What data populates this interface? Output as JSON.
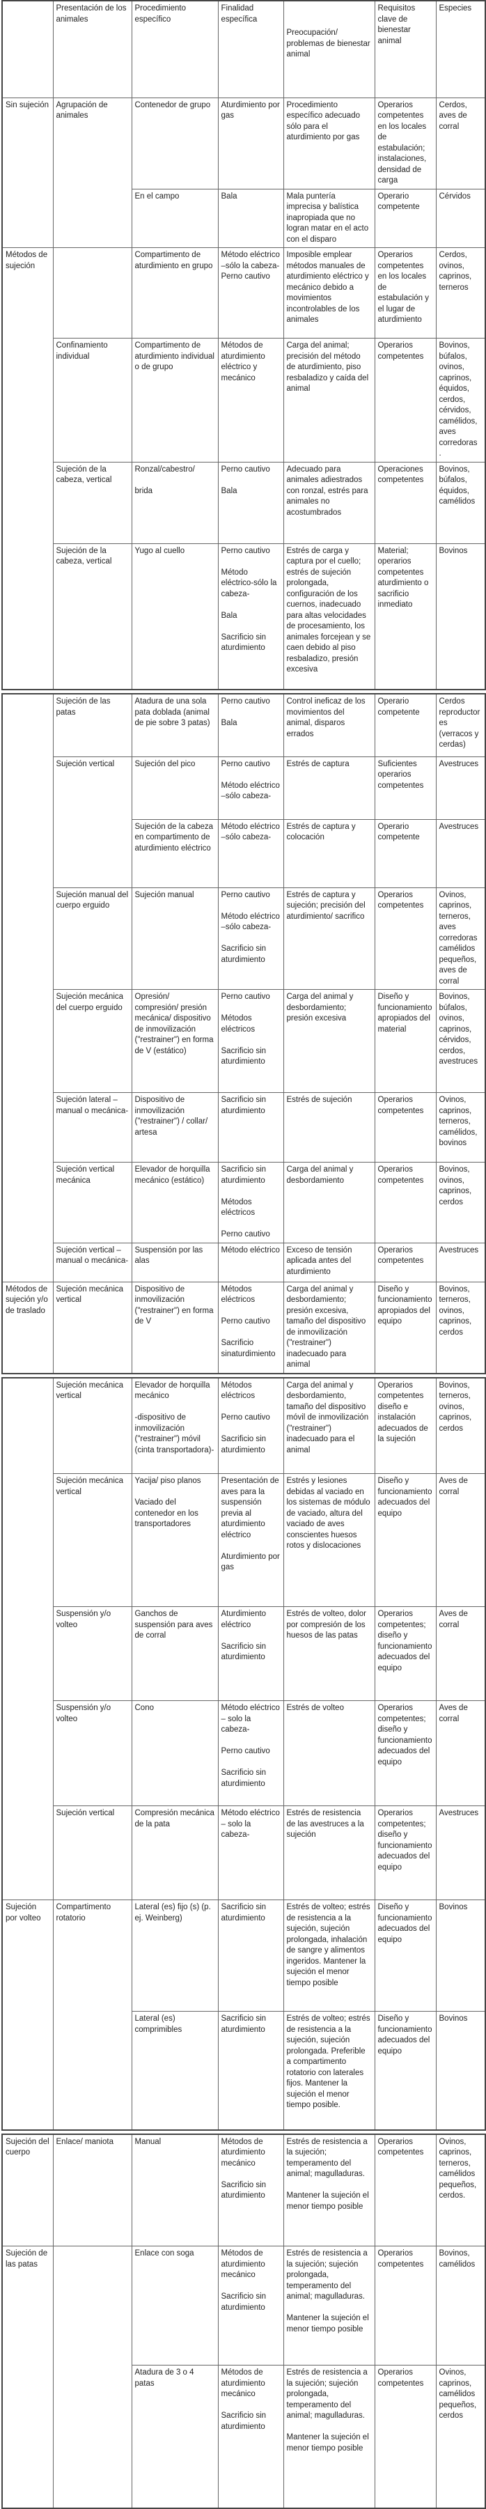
{
  "header": [
    "",
    "Presentación de los animales",
    "Procedimiento específico",
    "Finalidad específica",
    "Preocupación/ problemas de bienestar animal",
    "Requisitos clave de bienestar animal",
    "Especies"
  ],
  "pages": [
    [
      [
        {
          "t": "Sin sujeción",
          "span": 2
        },
        {
          "t": "Agrupación de animales",
          "span": 2
        },
        "Contenedor de grupo",
        "Aturdimiento por gas",
        "Procedimiento específico adecuado sólo para el aturdimiento por gas",
        "Operarios competentes en los locales de estabulación; instalaciones, densidad de carga",
        "Cerdos, aves de corral"
      ],
      [
        "En el campo",
        "Bala",
        "Mala puntería imprecisa y balística inapropiada que no logran matar en el acto con el disparo",
        "Operario competente",
        "Cérvidos"
      ],
      [
        {
          "t": "Métodos de sujeción",
          "span": 4
        },
        "",
        "Compartimento de aturdimiento en grupo",
        "Método eléctrico –sólo la cabeza-\nPerno cautivo",
        "Imposible emplear métodos manuales de aturdimiento eléctrico y mecánico debido a movimientos incontrolables de los animales",
        "Operarios competentes en los locales de estabulación y el lugar de aturdimiento",
        "Cerdos, ovinos, caprinos, terneros"
      ],
      [
        "Confinamiento individual",
        "Compartimento de aturdimiento individual o de grupo",
        "Métodos de aturdimiento eléctrico y mecánico",
        "Carga del animal; precisión del método de aturdimiento, piso resbaladizo y caída del animal",
        "Operarios competentes",
        "Bovinos, búfalos, ovinos, caprinos, équidos, cerdos, cérvidos, camélidos, aves corredoras\n."
      ],
      [
        "Sujeción de la cabeza, vertical",
        "Ronzal/cabestro/\n\nbrida",
        "Perno cautivo\n\nBala",
        "Adecuado para animales adiestrados con ronzal, estrés para animales no acostumbrados",
        "Operaciones competentes",
        "Bovinos, búfalos, équidos, camélidos"
      ],
      [
        "Sujeción de la cabeza, vertical",
        "Yugo al cuello",
        "Perno cautivo\n\nMétodo eléctrico-sólo la cabeza-\n\nBala\n\nSacrificio sin aturdimiento",
        "Estrés de carga y captura por el cuello; estrés de sujeción prolongada, configuración de los cuernos, inadecuado para altas velocidades de procesamiento, los animales forcejean y se caen debido al piso resbaladizo, presión excesiva",
        "Material; operarios competentes aturdimiento o sacrificio inmediato",
        "Bovinos"
      ]
    ],
    [
      [
        {
          "t": "",
          "span": 8
        },
        "Sujeción de las patas",
        "Atadura de una sola pata doblada (animal de pie sobre 3 patas)",
        "Perno cautivo\n\nBala",
        "Control ineficaz de los movimientos del animal, disparos errados",
        "Operario competente",
        "Cerdos reproductores (verracos y cerdas)"
      ],
      [
        {
          "t": "Sujeción vertical",
          "span": 2
        },
        "Sujeción del pico",
        "Perno cautivo\n\nMétodo eléctrico –sólo cabeza-",
        "Estrés de captura",
        "Suficientes operarios competentes",
        "Avestruces"
      ],
      [
        "Sujeción de la cabeza en compartimento de aturdimiento eléctrico",
        "Método eléctrico –sólo cabeza-",
        "Estrés de captura y colocación",
        "Operario competente",
        "Avestruces"
      ],
      [
        "Sujeción manual del cuerpo erguido",
        "Sujeción manual",
        "Perno cautivo\n\nMétodo eléctrico –sólo cabeza-\n\nSacrificio sin aturdimiento",
        "Estrés de captura y sujeción; precisión del aturdimiento/ sacrifico",
        "Operarios competentes",
        "Ovinos, caprinos, terneros, aves corredoras camélidos pequeños, aves de corral"
      ],
      [
        "Sujeción mecánica del cuerpo erguido",
        "Opresión/ compresión/ presión mecánica/ dispositivo de inmovilización (\"restrainer\") en forma de V (estático)",
        "Perno cautivo\n\nMétodos eléctricos\n\nSacrificio sin aturdimiento",
        "Carga del animal y desbordamiento; presión excesiva",
        "Diseño y funcionamiento apropiados del material",
        "Bovinos, búfalos, ovinos, caprinos, cérvidos, cerdos, avestruces"
      ],
      [
        "Sujeción lateral – manual o mecánica-",
        "Dispositivo de inmovilización (\"restrainer\") / collar/ artesa",
        "Sacrificio sin aturdimiento",
        "Estrés de sujeción",
        "Operarios competentes",
        "Ovinos, caprinos, terneros, camélidos, bovinos"
      ],
      [
        "Sujeción vertical mecánica",
        "Elevador de horquilla mecánico (estático)",
        "Sacrificio sin aturdimiento\n\nMétodos eléctricos\n\nPerno cautivo",
        "Carga del animal y desbordamiento",
        "Operarios competentes",
        "Bovinos, ovinos, caprinos, cerdos"
      ],
      [
        "Sujeción vertical – manual o mecánica-",
        "Suspensión por las alas",
        "Método eléctrico",
        "Exceso de tensión aplicada antes del aturdimiento",
        "Operarios competentes",
        "Avestruces"
      ],
      [
        "Métodos de sujeción y/o de traslado",
        "Sujeción mecánica vertical",
        "Dispositivo de inmovilización (\"restrainer\") en forma de V",
        "Métodos eléctricos\n\nPerno cautivo\n\nSacrificio sinaturdimiento",
        "Carga del animal y desbordamiento; presión excesiva, tamaño  del dispositivo de inmovilización (\"restrainer\") inadecuado para animal",
        "Diseño y funcionamiento apropiados del equipo",
        "Bovinos, terneros, ovinos, caprinos, cerdos"
      ]
    ],
    [
      [
        {
          "t": "",
          "span": 5
        },
        "Sujeción mecánica vertical",
        "Elevador de horquilla mecánico\n\n-dispositivo de inmovilización (\"restrainer\") móvil (cinta transportadora)-",
        "Métodos eléctricos\n\nPerno cautivo\n\nSacrificio sin aturdimiento",
        "Carga del animal y desbordamiento, tamaño del dispositivo  móvil de inmovilización (\"restrainer\") inadecuado para el animal",
        "Operarios competentes diseño e instalación adecuados de la sujeción",
        "Bovinos, terneros, ovinos, caprinos, cerdos"
      ],
      [
        "Sujeción mecánica vertical",
        "Yacija/ piso planos\n\nVaciado del contenedor en los transportadores",
        "Presentación de aves para la suspensión previa al aturdimiento eléctrico\n\nAturdimiento por gas",
        "Estrés y lesiones debidas al vaciado en los sistemas de módulo de vaciado, altura del vaciado de aves conscientes huesos rotos y dislocaciones",
        "Diseño y funcionamiento adecuados del equipo",
        "Aves de corral"
      ],
      [
        "Suspensión y/o volteo",
        "Ganchos de suspensión para aves de corral",
        "Aturdimiento eléctrico\n\nSacrificio sin aturdimiento",
        "Estrés de volteo, dolor por compresión de los huesos de las patas",
        "Operarios competentes; diseño y funcionamiento adecuados del equipo",
        "Aves de corral"
      ],
      [
        "Suspensión y/o volteo",
        "Cono",
        "Método eléctrico – solo la cabeza-\n\nPerno cautivo\n\nSacrificio sin aturdimiento",
        "Estrés de volteo",
        "Operarios competentes; diseño y funcionamiento adecuados del equipo",
        "Aves de corral"
      ],
      [
        "Sujeción vertical",
        "Compresión mecánica de la pata",
        "Método eléctrico – solo la cabeza-",
        "Estrés de resistencia de las avestruces a la sujeción",
        "Operarios competentes; diseño y funcionamiento adecuados del equipo",
        "Avestruces"
      ],
      [
        {
          "t": "Sujeción por volteo",
          "span": 2
        },
        {
          "t": "Compartimento rotatorio",
          "span": 2
        },
        "Lateral (es) fijo (s) (p. ej. Weinberg)",
        "Sacrificio sin aturdimiento",
        "Estrés de volteo; estrés de resistencia a la sujeción, sujeción prolongada, inhalación de sangre y alimentos ingeridos. Mantener la sujeción el menor tiempo posible",
        "Diseño y funcionamiento adecuados del equipo",
        "Bovinos"
      ],
      [
        "Lateral (es) comprimibles",
        "Sacrificio sin aturdimiento",
        "Estrés de volteo; estrés de resistencia a la sujeción, sujeción prolongada. Preferible a compartimento rotatorio con laterales fijos. Mantener la sujeción el menor tiempo posible.",
        "Diseño y funcionamiento adecuados del equipo",
        "Bovinos"
      ]
    ],
    [
      [
        "Sujeción del cuerpo",
        "Enlace/ maniota",
        "Manual",
        "Métodos de aturdimiento mecánico\n\nSacrificio sin aturdimiento",
        "Estrés de resistencia a la sujeción; temperamento del animal; magulladuras.\n\nMantener la sujeción el menor tiempo posible",
        "Operarios competentes",
        "Ovinos, caprinos, terneros, camélidos pequeños, cerdos."
      ],
      [
        {
          "t": "Sujeción de las patas",
          "span": 2
        },
        {
          "t": "",
          "span": 2
        },
        "Enlace con soga",
        "Métodos de aturdimiento mecánico\n\nSacrificio sin aturdimiento",
        "Estrés de resistencia a la sujeción; sujeción prolongada, temperamento del animal; magulladuras.\n\nMantener la sujeción el menor tiempo posible",
        "Operarios competentes",
        "Bovinos, camélidos"
      ],
      [
        "Atadura de 3 o 4 patas",
        "Métodos de aturdimiento mecánico\n\nSacrificio sin aturdimiento",
        "Estrés de resistencia a la sujeción; sujeción prolongada, temperamento del animal; magulladuras.\n\nMantener la sujeción el menor tiempo posible",
        "Operarios competentes",
        "Ovinos, caprinos, camélidos pequeños, cerdos"
      ]
    ]
  ]
}
